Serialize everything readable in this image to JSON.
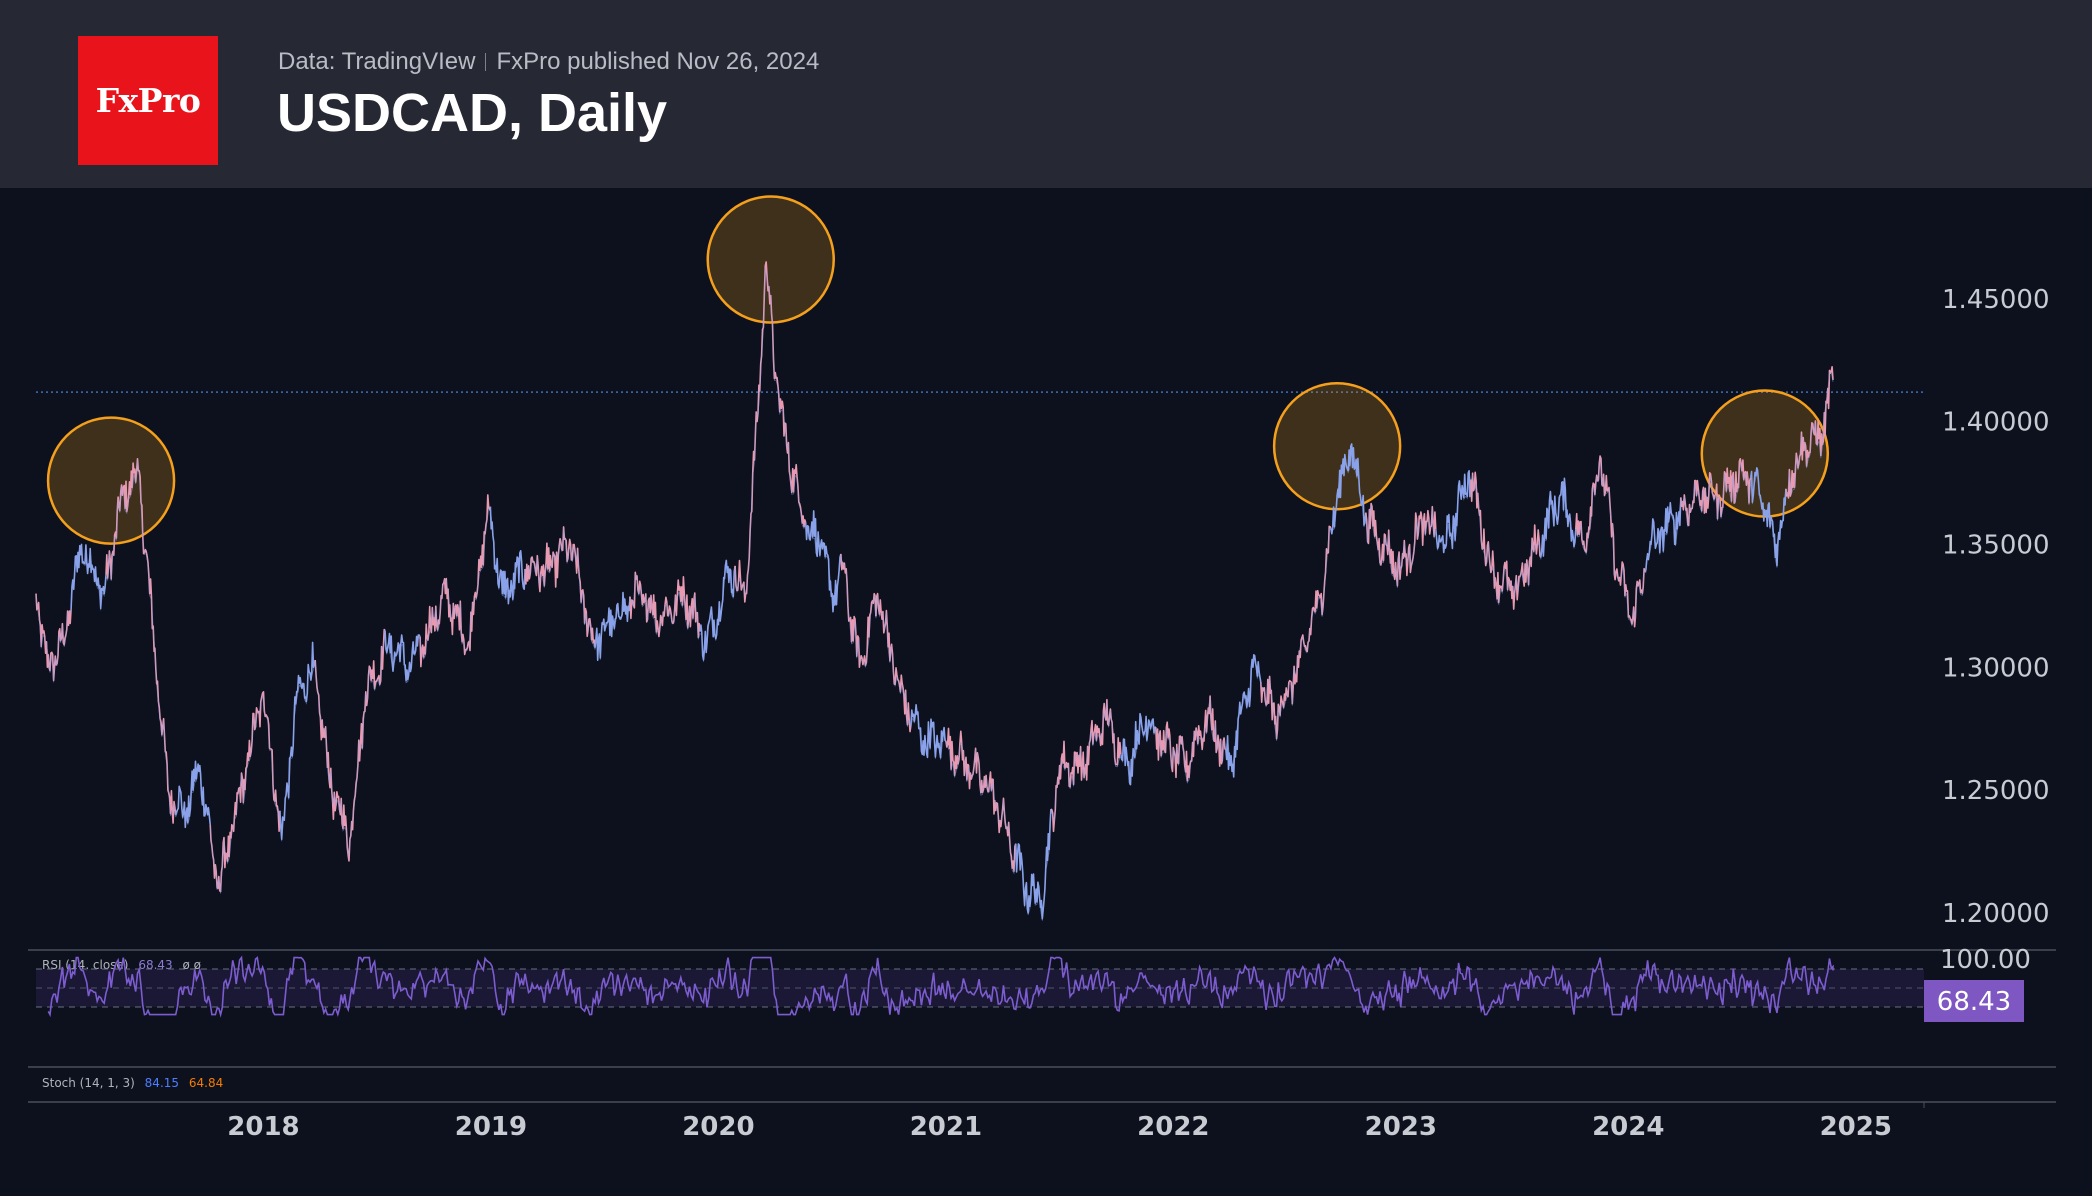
{
  "header": {
    "logo_text": "FxPro",
    "data_source": "Data: TradingVIew",
    "publisher": "FxPro published Nov 26, 2024",
    "title": "USDCAD, Daily"
  },
  "colors": {
    "header_bg": "#262933",
    "chart_bg": "#0c111d",
    "logo_red": "#e8131b",
    "price_line": "#e79ab1",
    "price_line_alt": "#8aa2ea",
    "highlight_circle": "#f5a01d",
    "rsi_line": "#7c5ccf",
    "rsi_badge": "#7e57c2",
    "stoch_k": "#2962ff",
    "stoch_d": "#f57c00"
  },
  "chart_data": {
    "type": "line",
    "title": "USDCAD, Daily",
    "xlabel": "",
    "ylabel": "",
    "x_range": [
      2017.0,
      2025.3
    ],
    "ylim": [
      1.18,
      1.5
    ],
    "y_ticks": [
      1.2,
      1.25,
      1.3,
      1.35,
      1.4,
      1.45
    ],
    "y_tick_labels": [
      "1.20000",
      "1.25000",
      "1.30000",
      "1.35000",
      "1.40000",
      "1.45000"
    ],
    "x_ticks": [
      2018,
      2019,
      2020,
      2021,
      2022,
      2023,
      2024,
      2025
    ],
    "x_tick_labels": [
      "2018",
      "2019",
      "2020",
      "2021",
      "2022",
      "2023",
      "2024",
      "2025"
    ],
    "horizontal_level": 1.412,
    "series": [
      {
        "name": "USDCAD",
        "x": [
          2017.0,
          2017.05,
          2017.12,
          2017.2,
          2017.3,
          2017.38,
          2017.45,
          2017.5,
          2017.58,
          2017.66,
          2017.72,
          2017.8,
          2017.88,
          2017.95,
          2018.0,
          2018.08,
          2018.15,
          2018.22,
          2018.3,
          2018.38,
          2018.45,
          2018.55,
          2018.65,
          2018.75,
          2018.8,
          2018.9,
          2018.99,
          2019.05,
          2019.15,
          2019.25,
          2019.35,
          2019.45,
          2019.55,
          2019.65,
          2019.75,
          2019.85,
          2019.95,
          2020.05,
          2020.12,
          2020.17,
          2020.21,
          2020.25,
          2020.3,
          2020.38,
          2020.45,
          2020.5,
          2020.55,
          2020.62,
          2020.7,
          2020.8,
          2020.9,
          2021.0,
          2021.1,
          2021.2,
          2021.28,
          2021.35,
          2021.42,
          2021.5,
          2021.6,
          2021.7,
          2021.8,
          2021.88,
          2021.95,
          2022.05,
          2022.15,
          2022.25,
          2022.35,
          2022.45,
          2022.55,
          2022.65,
          2022.72,
          2022.78,
          2022.85,
          2022.92,
          2023.0,
          2023.1,
          2023.2,
          2023.3,
          2023.4,
          2023.5,
          2023.6,
          2023.7,
          2023.8,
          2023.88,
          2023.95,
          2024.02,
          2024.1,
          2024.2,
          2024.3,
          2024.4,
          2024.5,
          2024.58,
          2024.65,
          2024.72,
          2024.78,
          2024.85,
          2024.9
        ],
        "values": [
          1.33,
          1.3,
          1.31,
          1.35,
          1.33,
          1.37,
          1.38,
          1.33,
          1.25,
          1.24,
          1.26,
          1.21,
          1.24,
          1.27,
          1.29,
          1.23,
          1.29,
          1.3,
          1.25,
          1.23,
          1.29,
          1.31,
          1.3,
          1.32,
          1.33,
          1.31,
          1.365,
          1.33,
          1.34,
          1.34,
          1.35,
          1.31,
          1.32,
          1.33,
          1.32,
          1.33,
          1.31,
          1.34,
          1.33,
          1.4,
          1.465,
          1.42,
          1.39,
          1.36,
          1.35,
          1.33,
          1.34,
          1.3,
          1.33,
          1.29,
          1.27,
          1.27,
          1.26,
          1.25,
          1.23,
          1.21,
          1.205,
          1.26,
          1.26,
          1.28,
          1.26,
          1.28,
          1.27,
          1.26,
          1.28,
          1.26,
          1.3,
          1.28,
          1.3,
          1.33,
          1.37,
          1.39,
          1.36,
          1.35,
          1.34,
          1.36,
          1.35,
          1.38,
          1.34,
          1.33,
          1.35,
          1.37,
          1.35,
          1.385,
          1.34,
          1.32,
          1.35,
          1.36,
          1.37,
          1.37,
          1.38,
          1.37,
          1.35,
          1.38,
          1.39,
          1.395,
          1.417
        ]
      }
    ],
    "highlight_circles": [
      {
        "x": 2017.33,
        "y": 1.376
      },
      {
        "x": 2020.23,
        "y": 1.466
      },
      {
        "x": 2022.72,
        "y": 1.39
      },
      {
        "x": 2024.6,
        "y": 1.387
      }
    ],
    "rsi": {
      "label": "RSI (14, close)",
      "value_text": "68.43",
      "extra": "ø ø",
      "top_label": "100.00",
      "last_value": 68.43,
      "upper_band": 70,
      "lower_band": 30,
      "middle": 50
    },
    "stoch": {
      "label": "Stoch (14, 1, 3)",
      "k_value": "84.15",
      "d_value": "64.84"
    }
  }
}
